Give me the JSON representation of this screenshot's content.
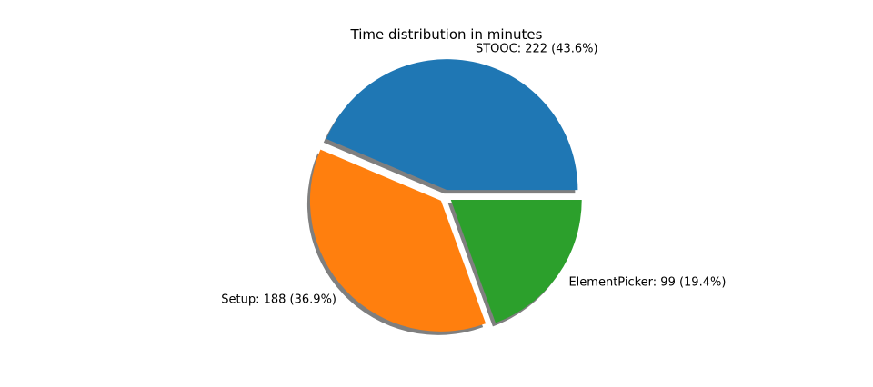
{
  "chart_data": {
    "type": "pie",
    "title": "Time distribution in minutes",
    "slices": [
      {
        "label": "STOOC",
        "value": 222,
        "percent": 43.6,
        "color": "#1f77b4",
        "text": "STOOC: 222 (43.6%)"
      },
      {
        "label": "Setup",
        "value": 188,
        "percent": 36.9,
        "color": "#ff7f0e",
        "text": "Setup: 188 (36.9%)"
      },
      {
        "label": "ElementPicker",
        "value": 99,
        "percent": 19.4,
        "color": "#2ca02c",
        "text": "ElementPicker: 99 (19.4%)"
      }
    ],
    "start_angle_deg": 0,
    "direction": "counterclockwise",
    "exploded": true,
    "shadow": true,
    "shadow_color": "#7f7f7f"
  }
}
